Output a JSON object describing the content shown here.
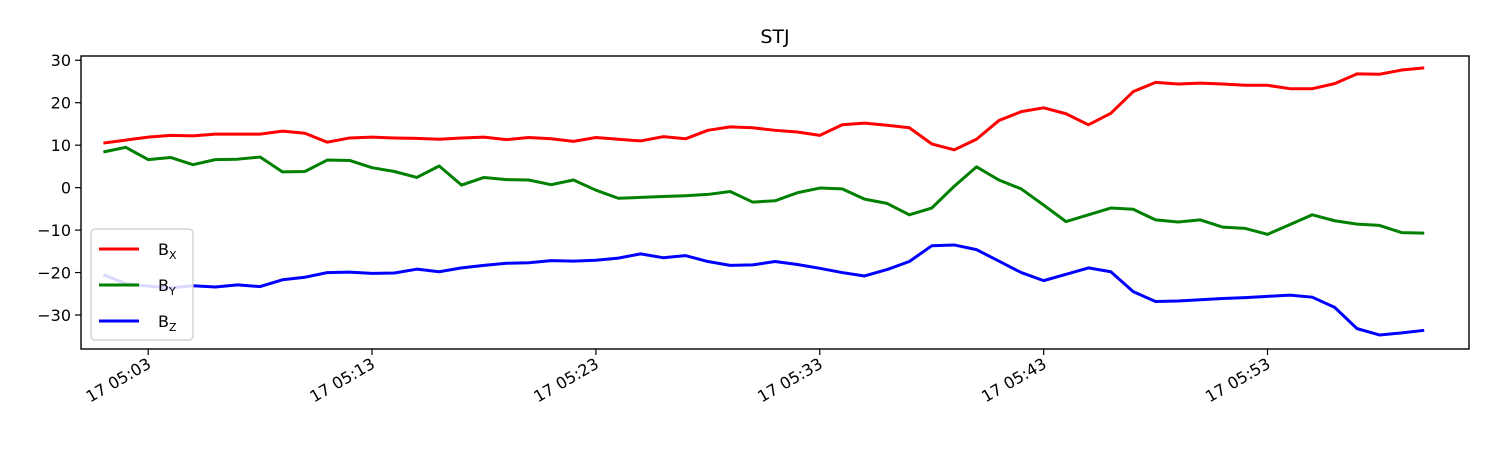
{
  "chart_data": {
    "type": "line",
    "title": "STJ",
    "xlabel": "",
    "ylabel": "",
    "x_start": "17 05:00",
    "x_end": "17 06:02",
    "x_unit": "minutes",
    "ylim": [
      -38,
      31
    ],
    "yticks": [
      30,
      20,
      10,
      0,
      -10,
      -20,
      -30
    ],
    "xticks": [
      {
        "value": "17 05:03",
        "label": "17 05:03"
      },
      {
        "value": "17 05:13",
        "label": "17 05:13"
      },
      {
        "value": "17 05:23",
        "label": "17 05:23"
      },
      {
        "value": "17 05:33",
        "label": "17 05:33"
      },
      {
        "value": "17 05:43",
        "label": "17 05:43"
      },
      {
        "value": "17 05:53",
        "label": "17 05:53"
      }
    ],
    "x": [
      "17 05:01:00",
      "17 05:02:00",
      "17 05:03:00",
      "17 05:04:00",
      "17 05:05:00",
      "17 05:06:00",
      "17 05:07:00",
      "17 05:08:00",
      "17 05:09:00",
      "17 05:10:00",
      "17 05:11:00",
      "17 05:12:00",
      "17 05:13:00",
      "17 05:14:00",
      "17 05:15:00",
      "17 05:16:00",
      "17 05:17:00",
      "17 05:18:00",
      "17 05:19:00",
      "17 05:20:00",
      "17 05:21:00",
      "17 05:22:00",
      "17 05:23:00",
      "17 05:24:00",
      "17 05:25:00",
      "17 05:26:00",
      "17 05:27:00",
      "17 05:28:00",
      "17 05:29:00",
      "17 05:30:00",
      "17 05:31:00",
      "17 05:32:00",
      "17 05:33:00",
      "17 05:34:00",
      "17 05:35:00",
      "17 05:36:00",
      "17 05:37:00",
      "17 05:38:00",
      "17 05:39:00",
      "17 05:40:00",
      "17 05:41:00",
      "17 05:42:00",
      "17 05:43:00",
      "17 05:44:00",
      "17 05:45:00",
      "17 05:46:00",
      "17 05:47:00",
      "17 05:48:00",
      "17 05:49:00",
      "17 05:50:00",
      "17 05:51:00",
      "17 05:52:00",
      "17 05:53:00",
      "17 05:54:00",
      "17 05:55:00",
      "17 05:56:00",
      "17 05:57:00",
      "17 05:58:00",
      "17 05:59:00",
      "17 06:00:00"
    ],
    "series": [
      {
        "name": "B_X",
        "label_main": "B",
        "label_sub": "X",
        "color": "#ff0000",
        "values": [
          10.5,
          11.2,
          11.9,
          12.3,
          12.2,
          12.6,
          12.6,
          12.6,
          13.3,
          12.8,
          10.7,
          11.7,
          11.9,
          11.7,
          11.6,
          11.4,
          11.7,
          11.9,
          11.3,
          11.8,
          11.5,
          10.9,
          11.8,
          11.4,
          11.0,
          12.0,
          11.5,
          13.5,
          14.3,
          14.1,
          13.5,
          13.1,
          12.3,
          14.8,
          15.2,
          14.7,
          14.1,
          10.3,
          8.9,
          11.4,
          15.8,
          17.9,
          18.8,
          17.4,
          14.8,
          17.5,
          22.6,
          24.8,
          24.4,
          24.6,
          24.4,
          24.1,
          24.1,
          23.3,
          23.3,
          24.5,
          26.8,
          26.7,
          27.7,
          28.2
        ]
      },
      {
        "name": "B_Y",
        "label_main": "B",
        "label_sub": "Y",
        "color": "#008000",
        "values": [
          8.4,
          9.5,
          6.6,
          7.1,
          5.4,
          6.6,
          6.7,
          7.2,
          3.7,
          3.8,
          6.5,
          6.4,
          4.7,
          3.8,
          2.4,
          5.1,
          0.6,
          2.4,
          1.9,
          1.8,
          0.7,
          1.8,
          -0.6,
          -2.5,
          -2.3,
          -2.1,
          -1.9,
          -1.6,
          -0.9,
          -3.4,
          -3.1,
          -1.2,
          -0.1,
          -0.3,
          -2.7,
          -3.7,
          -6.4,
          -4.8,
          0.3,
          4.9,
          1.8,
          -0.3,
          -4.1,
          -8.0,
          -6.4,
          -4.8,
          -5.1,
          -7.6,
          -8.1,
          -7.6,
          -9.3,
          -9.6,
          -11.0,
          -8.7,
          -6.4,
          -7.8,
          -8.6,
          -8.9,
          -10.6,
          -10.7
        ]
      },
      {
        "name": "B_Z",
        "label_main": "B",
        "label_sub": "Z",
        "color": "#0000ff",
        "values": [
          -20.5,
          -22.6,
          -23.2,
          -23.6,
          -23.1,
          -23.4,
          -22.9,
          -23.3,
          -21.7,
          -21.1,
          -20.0,
          -19.9,
          -20.2,
          -20.1,
          -19.2,
          -19.8,
          -18.9,
          -18.3,
          -17.8,
          -17.7,
          -17.2,
          -17.3,
          -17.1,
          -16.6,
          -15.6,
          -16.5,
          -16.0,
          -17.4,
          -18.3,
          -18.2,
          -17.4,
          -18.1,
          -19.0,
          -20.0,
          -20.8,
          -19.3,
          -17.4,
          -13.7,
          -13.5,
          -14.6,
          -17.3,
          -20.0,
          -21.9,
          -20.4,
          -18.9,
          -19.8,
          -24.5,
          -26.8,
          -26.7,
          -26.4,
          -26.1,
          -25.9,
          -25.6,
          -25.3,
          -25.8,
          -28.2,
          -33.2,
          -34.7,
          -34.2,
          -33.6
        ]
      }
    ],
    "legend": "lower-left",
    "grid": false
  }
}
